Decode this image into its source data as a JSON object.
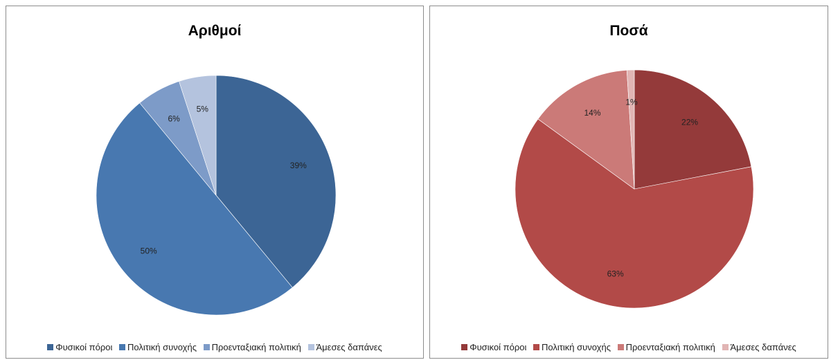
{
  "chart_data": [
    {
      "type": "pie",
      "title": "Αριθμοί",
      "categories": [
        "Φυσικοί πόροι",
        "Πολιτική συνοχής",
        "Προενταξιακή πολιτική",
        "Άμεσες δαπάνες"
      ],
      "values": [
        39,
        50,
        6,
        5
      ],
      "labels": [
        "39%",
        "50%",
        "6%",
        "5%"
      ],
      "colors": [
        "#3c6595",
        "#4878b0",
        "#7d9bc8",
        "#b4c3de"
      ],
      "legend_position": "bottom"
    },
    {
      "type": "pie",
      "title": "Ποσά",
      "categories": [
        "Φυσικοί πόροι",
        "Πολιτική συνοχής",
        "Προενταξιακή πολιτική",
        "Άμεσες δαπάνες"
      ],
      "values": [
        22,
        63,
        14,
        1
      ],
      "labels": [
        "22%",
        "63%",
        "14%",
        "1%"
      ],
      "colors": [
        "#943a3a",
        "#b24a48",
        "#cb7a78",
        "#e1b5b4"
      ],
      "legend_position": "bottom"
    }
  ]
}
